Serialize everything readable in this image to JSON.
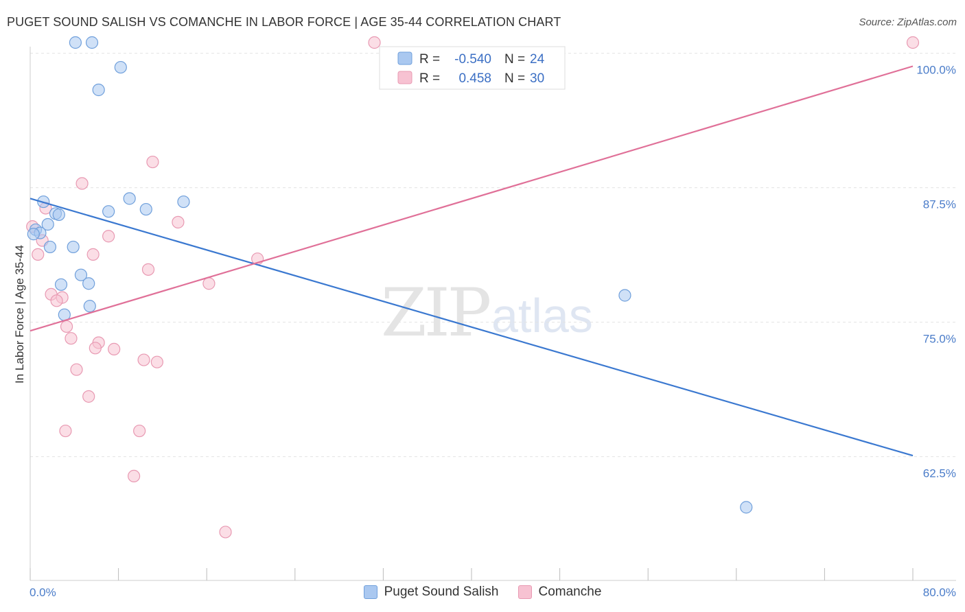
{
  "header": {
    "title": "PUGET SOUND SALISH VS COMANCHE IN LABOR FORCE | AGE 35-44 CORRELATION CHART",
    "source": "Source: ZipAtlas.com"
  },
  "watermark": {
    "zip": "ZIP",
    "atlas": "atlas"
  },
  "colors": {
    "blue_fill": "#aac8f0",
    "blue_stroke": "#6f9fdb",
    "blue_line": "#3a78d0",
    "pink_fill": "#f7c2d2",
    "pink_stroke": "#e899b2",
    "pink_line": "#e07098",
    "grid": "#e3e3e3",
    "tick_label": "#4a7cc9"
  },
  "legend_top": {
    "rows": [
      {
        "r_label": "R =",
        "r_value": "-0.540",
        "n_label": "N =",
        "n_value": "24"
      },
      {
        "r_label": "R =",
        "r_value": "0.458",
        "n_label": "N =",
        "n_value": "30"
      }
    ]
  },
  "legend_bottom": {
    "items": [
      {
        "label": "Puget Sound Salish"
      },
      {
        "label": "Comanche"
      }
    ]
  },
  "chart_data": {
    "type": "scatter",
    "title": "PUGET SOUND SALISH VS COMANCHE IN LABOR FORCE | AGE 35-44 CORRELATION CHART",
    "xlabel": "",
    "ylabel": "In Labor Force | Age 35-44",
    "xlim": [
      0,
      80
    ],
    "ylim": [
      51,
      101
    ],
    "x_tick_labels": {
      "min": "0.0%",
      "max": "80.0%"
    },
    "y_ticks": [
      {
        "value": 100,
        "label": "100.0%"
      },
      {
        "value": 87.5,
        "label": "87.5%"
      },
      {
        "value": 75,
        "label": "75.0%"
      },
      {
        "value": 62.5,
        "label": "62.5%"
      }
    ],
    "series": [
      {
        "name": "Puget Sound Salish",
        "r": -0.54,
        "n": 24,
        "trend": {
          "x0": 0,
          "y0": 86.5,
          "x1": 80,
          "y1": 62.6
        },
        "points": [
          [
            4.1,
            101.0
          ],
          [
            5.6,
            101.0
          ],
          [
            8.2,
            98.7
          ],
          [
            6.2,
            96.6
          ],
          [
            1.2,
            86.2
          ],
          [
            2.3,
            85.1
          ],
          [
            7.1,
            85.3
          ],
          [
            9.0,
            86.5
          ],
          [
            10.5,
            85.5
          ],
          [
            13.9,
            86.2
          ],
          [
            1.6,
            84.1
          ],
          [
            0.5,
            83.6
          ],
          [
            0.9,
            83.3
          ],
          [
            1.8,
            82.0
          ],
          [
            3.9,
            82.0
          ],
          [
            4.6,
            79.4
          ],
          [
            5.3,
            78.6
          ],
          [
            2.8,
            78.5
          ],
          [
            5.4,
            76.5
          ],
          [
            3.1,
            75.7
          ],
          [
            53.9,
            77.5
          ],
          [
            64.9,
            57.8
          ],
          [
            0.3,
            83.2
          ],
          [
            2.6,
            85.0
          ]
        ]
      },
      {
        "name": "Comanche",
        "r": 0.458,
        "n": 30,
        "trend": {
          "x0": 0,
          "y0": 74.2,
          "x1": 80,
          "y1": 98.8
        },
        "points": [
          [
            31.2,
            101.0
          ],
          [
            80.0,
            101.0
          ],
          [
            11.1,
            89.9
          ],
          [
            4.7,
            87.9
          ],
          [
            1.4,
            85.6
          ],
          [
            13.4,
            84.3
          ],
          [
            7.1,
            83.0
          ],
          [
            1.1,
            82.6
          ],
          [
            0.7,
            81.3
          ],
          [
            5.7,
            81.3
          ],
          [
            20.6,
            80.9
          ],
          [
            10.7,
            79.9
          ],
          [
            16.2,
            78.6
          ],
          [
            1.9,
            77.6
          ],
          [
            2.9,
            77.3
          ],
          [
            2.4,
            77.0
          ],
          [
            3.3,
            74.6
          ],
          [
            3.7,
            73.5
          ],
          [
            6.2,
            73.1
          ],
          [
            5.9,
            72.6
          ],
          [
            7.6,
            72.5
          ],
          [
            10.3,
            71.5
          ],
          [
            11.5,
            71.3
          ],
          [
            4.2,
            70.6
          ],
          [
            5.3,
            68.1
          ],
          [
            3.2,
            64.9
          ],
          [
            9.9,
            64.9
          ],
          [
            9.4,
            60.7
          ],
          [
            17.7,
            55.5
          ],
          [
            0.2,
            83.9
          ]
        ]
      }
    ]
  }
}
